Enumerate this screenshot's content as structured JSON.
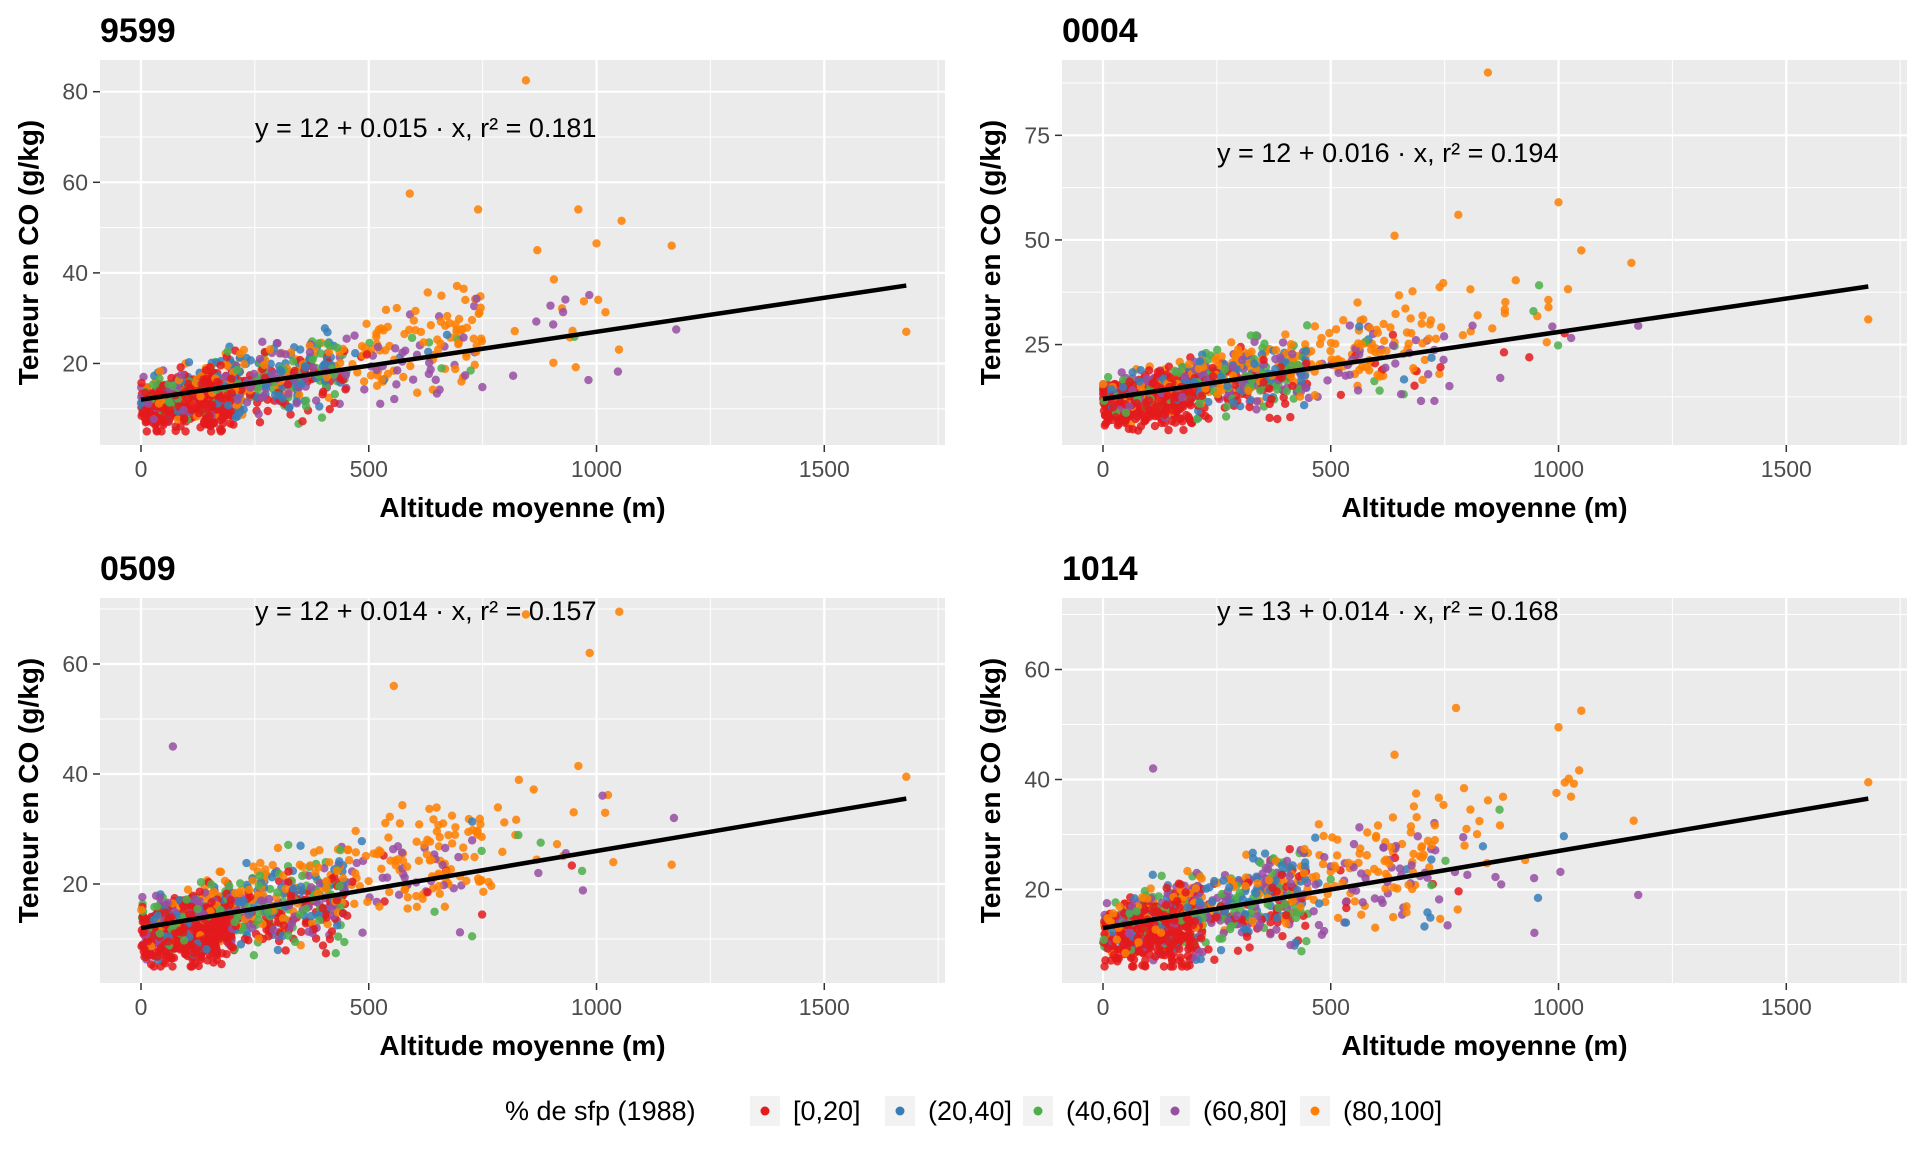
{
  "legend": {
    "title": "% de sfp (1988)",
    "items": [
      {
        "label": "[0,20]",
        "color": "#E41A1C"
      },
      {
        "label": "(20,40]",
        "color": "#377EB8"
      },
      {
        "label": "(40,60]",
        "color": "#4DAF4A"
      },
      {
        "label": "(60,80]",
        "color": "#984EA3"
      },
      {
        "label": "(80,100]",
        "color": "#FF7F00"
      }
    ]
  },
  "chart_data": [
    {
      "type": "scatter",
      "title": "9599",
      "xlabel": "Altitude moyenne (m)",
      "ylabel": "Teneur en CO (g/kg)",
      "xlim": [
        -90,
        1765
      ],
      "ylim": [
        2,
        87
      ],
      "xticks": [
        "0",
        "500",
        "1000",
        "1500"
      ],
      "yticks": [
        "20",
        "40",
        "60",
        "80"
      ],
      "xtick_values": [
        0,
        500,
        1000,
        1500
      ],
      "ytick_values": [
        20,
        40,
        60,
        80
      ],
      "grid": true,
      "equation": "y = 12 + 0.015 · x,  r² = 0.181",
      "fit": {
        "intercept": 12,
        "slope": 0.015,
        "r2": 0.181,
        "x_range": [
          0,
          1680
        ]
      },
      "highlight_points": [
        {
          "x": 845,
          "y": 82.5,
          "group": 4
        },
        {
          "x": 590,
          "y": 57.5,
          "group": 4
        },
        {
          "x": 740,
          "y": 54,
          "group": 4
        },
        {
          "x": 960,
          "y": 54,
          "group": 4
        },
        {
          "x": 1055,
          "y": 51.5,
          "group": 4
        },
        {
          "x": 1165,
          "y": 46,
          "group": 4
        },
        {
          "x": 1680,
          "y": 27,
          "group": 4
        },
        {
          "x": 1175,
          "y": 27.5,
          "group": 3
        },
        {
          "x": 870,
          "y": 45,
          "group": 4
        },
        {
          "x": 1000,
          "y": 46.5,
          "group": 4
        }
      ]
    },
    {
      "type": "scatter",
      "title": "0004",
      "xlabel": "Altitude moyenne (m)",
      "ylabel": "Teneur en CO (g/kg)",
      "xlim": [
        -90,
        1765
      ],
      "ylim": [
        1,
        93
      ],
      "xticks": [
        "0",
        "500",
        "1000",
        "1500"
      ],
      "yticks": [
        "25",
        "50",
        "75"
      ],
      "xtick_values": [
        0,
        500,
        1000,
        1500
      ],
      "ytick_values": [
        25,
        50,
        75
      ],
      "grid": true,
      "equation": "y = 12 + 0.016 · x,  r² = 0.194",
      "fit": {
        "intercept": 12,
        "slope": 0.016,
        "r2": 0.194,
        "x_range": [
          0,
          1680
        ]
      },
      "highlight_points": [
        {
          "x": 845,
          "y": 90,
          "group": 4
        },
        {
          "x": 1000,
          "y": 59,
          "group": 4
        },
        {
          "x": 780,
          "y": 56,
          "group": 4
        },
        {
          "x": 1050,
          "y": 47.5,
          "group": 4
        },
        {
          "x": 1160,
          "y": 44.5,
          "group": 4
        },
        {
          "x": 1680,
          "y": 31,
          "group": 4
        },
        {
          "x": 1175,
          "y": 29.5,
          "group": 3
        },
        {
          "x": 640,
          "y": 51,
          "group": 4
        }
      ]
    },
    {
      "type": "scatter",
      "title": "0509",
      "xlabel": "Altitude moyenne (m)",
      "ylabel": "Teneur en CO (g/kg)",
      "xlim": [
        -90,
        1765
      ],
      "ylim": [
        2,
        72
      ],
      "xticks": [
        "0",
        "500",
        "1000",
        "1500"
      ],
      "yticks": [
        "20",
        "40",
        "60"
      ],
      "xtick_values": [
        0,
        500,
        1000,
        1500
      ],
      "ytick_values": [
        20,
        40,
        60
      ],
      "grid": true,
      "equation": "y = 12 + 0.014 · x,  r² = 0.157",
      "fit": {
        "intercept": 12,
        "slope": 0.014,
        "r2": 0.157,
        "x_range": [
          0,
          1680
        ]
      },
      "highlight_points": [
        {
          "x": 845,
          "y": 69,
          "group": 4
        },
        {
          "x": 1050,
          "y": 69.5,
          "group": 4
        },
        {
          "x": 985,
          "y": 62,
          "group": 4
        },
        {
          "x": 555,
          "y": 56,
          "group": 4
        },
        {
          "x": 1680,
          "y": 39.5,
          "group": 4
        },
        {
          "x": 1170,
          "y": 32,
          "group": 3
        },
        {
          "x": 1165,
          "y": 23.5,
          "group": 4
        },
        {
          "x": 70,
          "y": 45,
          "group": 3
        }
      ]
    },
    {
      "type": "scatter",
      "title": "1014",
      "xlabel": "Altitude moyenne (m)",
      "ylabel": "Teneur en CO (g/kg)",
      "xlim": [
        -90,
        1765
      ],
      "ylim": [
        3,
        73
      ],
      "xticks": [
        "0",
        "500",
        "1000",
        "1500"
      ],
      "yticks": [
        "20",
        "40",
        "60"
      ],
      "xtick_values": [
        0,
        500,
        1000,
        1500
      ],
      "ytick_values": [
        20,
        40,
        60
      ],
      "grid": true,
      "equation": "y = 13 + 0.014 · x,  r² = 0.168",
      "fit": {
        "intercept": 13,
        "slope": 0.014,
        "r2": 0.168,
        "x_range": [
          0,
          1680
        ]
      },
      "highlight_points": [
        {
          "x": 775,
          "y": 53,
          "group": 4
        },
        {
          "x": 1050,
          "y": 52.5,
          "group": 4
        },
        {
          "x": 1000,
          "y": 49.5,
          "group": 4
        },
        {
          "x": 640,
          "y": 44.5,
          "group": 4
        },
        {
          "x": 1680,
          "y": 39.5,
          "group": 4
        },
        {
          "x": 1165,
          "y": 32.5,
          "group": 4
        },
        {
          "x": 1175,
          "y": 19,
          "group": 3
        },
        {
          "x": 110,
          "y": 42,
          "group": 3
        }
      ]
    }
  ]
}
